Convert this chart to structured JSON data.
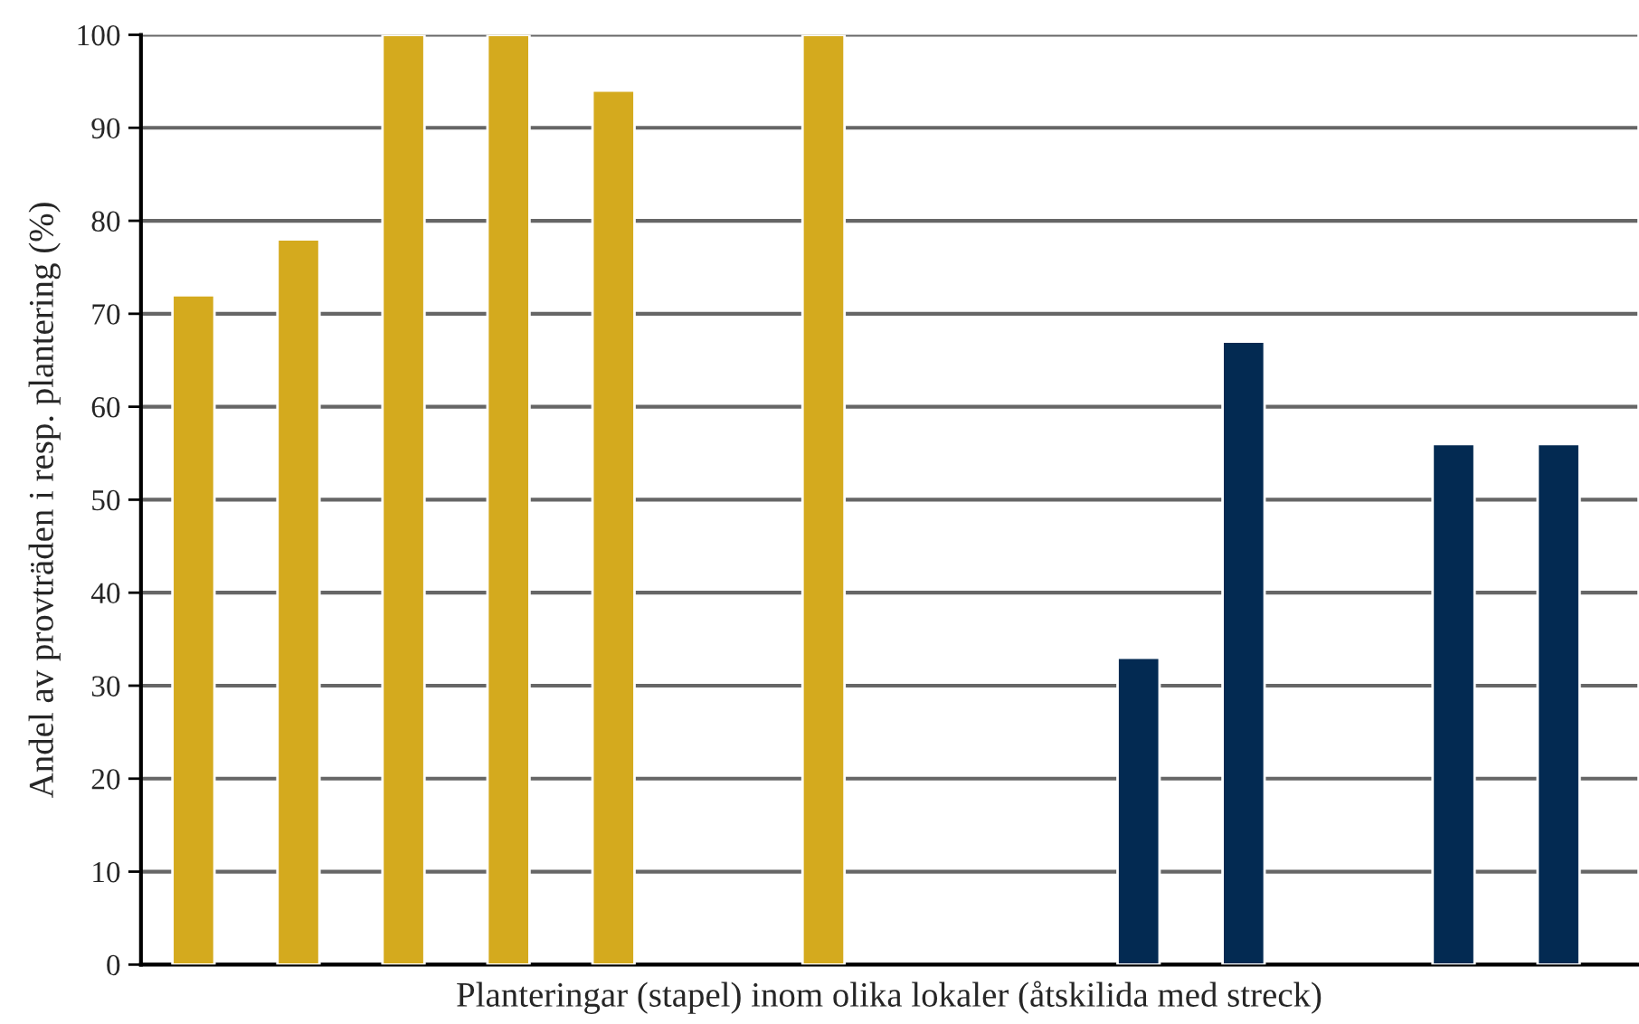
{
  "chart_data": {
    "type": "bar",
    "xlabel": "Planteringar (stapel) inom olika lokaler (åtskilida med streck)",
    "ylabel": "Andel av provträden i resp. plantering (%)",
    "categories": [
      null,
      null,
      null,
      null,
      null,
      null,
      null,
      null,
      null,
      null,
      null,
      null,
      null,
      null
    ],
    "values": [
      72,
      78,
      100,
      100,
      94,
      null,
      100,
      null,
      null,
      33,
      67,
      null,
      56,
      56
    ],
    "colors": [
      "#d4aa1e",
      "#d4aa1e",
      "#d4aa1e",
      "#d4aa1e",
      "#d4aa1e",
      "#d4aa1e",
      "#d4aa1e",
      "#d4aa1e",
      "#d4aa1e",
      "#032a52",
      "#032a52",
      "#032a52",
      "#032a52",
      "#032a52"
    ],
    "ylim": [
      0,
      100
    ],
    "yticks": [
      0,
      10,
      20,
      30,
      40,
      50,
      60,
      70,
      80,
      90,
      100
    ],
    "grid": "y"
  }
}
